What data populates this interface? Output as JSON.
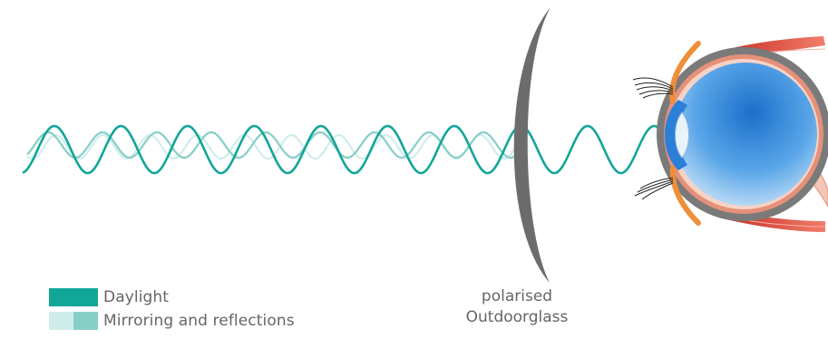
{
  "colors": {
    "daylight": "#12a698",
    "reflection_light": "#cfeeeb",
    "reflection_mid": "#86cfc7",
    "lens": "#6c6c6c",
    "eye_outer": "#7a7a7a",
    "eye_ring": "#e5917a",
    "eyelid": "#ef8f3a",
    "muscle": "#d73b32",
    "iris_blue": "#1a6fcb",
    "text": "#666666"
  },
  "legend": [
    {
      "label": "Daylight",
      "swatch": [
        "#12a698",
        "#12a698"
      ]
    },
    {
      "label": "Mirroring and reflections",
      "swatch": [
        "#cfeeeb",
        "#86cfc7"
      ]
    }
  ],
  "lens_label": {
    "line1": "polarised",
    "line2": "Outdoorglass"
  },
  "icons": [
    "wave-daylight",
    "wave-reflection",
    "polarised-lens",
    "eye-cross-section"
  ]
}
